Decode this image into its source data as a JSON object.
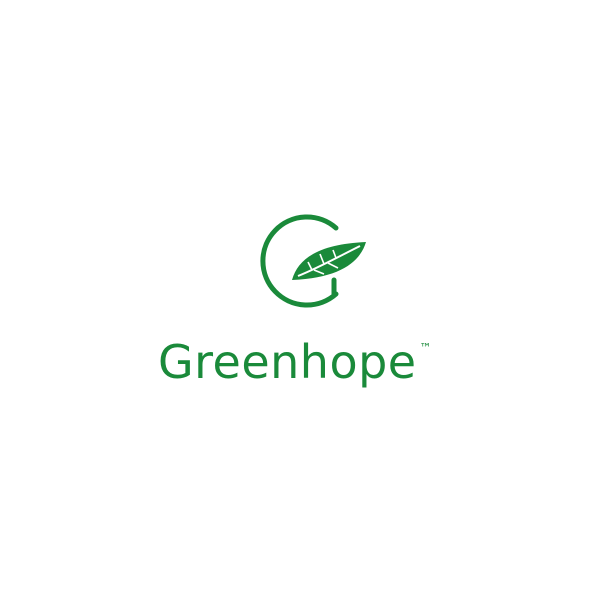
{
  "brand": {
    "name": "Greenhope",
    "trademark": "™",
    "color": "#1a8a3a"
  },
  "icons": [
    "circle-g-icon",
    "leaf-icon"
  ]
}
